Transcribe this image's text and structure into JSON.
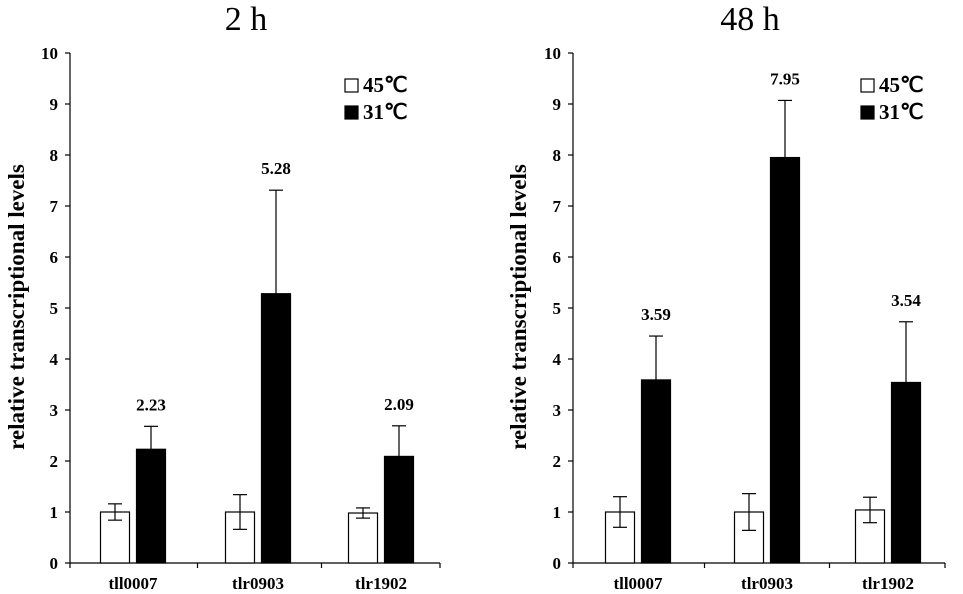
{
  "chart_data": [
    {
      "type": "bar",
      "title": "2 h",
      "ylabel": "relative transcriptional levels",
      "xlabel": "",
      "ylim": [
        0,
        10
      ],
      "yticks": [
        0,
        1,
        2,
        3,
        4,
        5,
        6,
        7,
        8,
        9,
        10
      ],
      "categories": [
        "tll0007",
        "tlr0903",
        "tlr1902"
      ],
      "legend_position": "top-right",
      "series": [
        {
          "name": "45℃",
          "fill": "#ffffff",
          "values": [
            1.0,
            1.0,
            0.98
          ],
          "errors": [
            0.16,
            0.34,
            0.1
          ]
        },
        {
          "name": "31℃",
          "fill": "#000000",
          "values": [
            2.23,
            5.28,
            2.09
          ],
          "errors": [
            0.45,
            2.03,
            0.6
          ]
        }
      ],
      "data_labels": [
        "2.23",
        "5.28",
        "2.09"
      ]
    },
    {
      "type": "bar",
      "title": "48 h",
      "ylabel": "relative transcriptional levels",
      "xlabel": "",
      "ylim": [
        0,
        10
      ],
      "yticks": [
        0,
        1,
        2,
        3,
        4,
        5,
        6,
        7,
        8,
        9,
        10
      ],
      "categories": [
        "tll0007",
        "tlr0903",
        "tlr1902"
      ],
      "legend_position": "top-right",
      "series": [
        {
          "name": "45℃",
          "fill": "#ffffff",
          "values": [
            1.0,
            1.0,
            1.04
          ],
          "errors": [
            0.3,
            0.36,
            0.25
          ]
        },
        {
          "name": "31℃",
          "fill": "#000000",
          "values": [
            3.59,
            7.95,
            3.54
          ],
          "errors": [
            0.86,
            1.12,
            1.19
          ]
        }
      ],
      "data_labels": [
        "3.59",
        "7.95",
        "3.54"
      ]
    }
  ]
}
